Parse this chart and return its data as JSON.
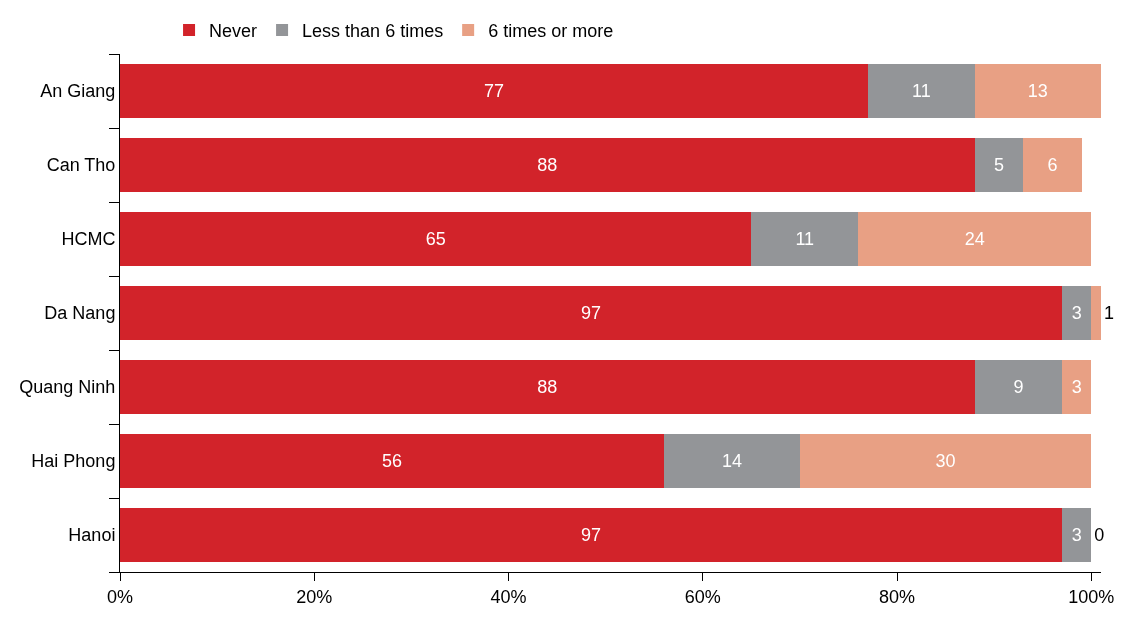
{
  "chart_data": {
    "type": "bar",
    "orientation": "horizontal",
    "stacked": true,
    "categories": [
      "An Giang",
      "Can Tho",
      "HCMC",
      "Da Nang",
      "Quang Ninh",
      "Hai Phong",
      "Hanoi"
    ],
    "series": [
      {
        "name": "Never",
        "color": "#d2232a",
        "values": [
          77,
          88,
          65,
          97,
          88,
          56,
          97
        ]
      },
      {
        "name": "Less than 6 times",
        "color": "#939598",
        "values": [
          11,
          5,
          11,
          3,
          9,
          14,
          3
        ]
      },
      {
        "name": "6 times or more",
        "color": "#e8a084",
        "values": [
          13,
          6,
          24,
          1,
          3,
          30,
          0
        ]
      }
    ],
    "xlim": [
      0,
      101
    ],
    "xticks": [
      {
        "value": 0,
        "label": "0%"
      },
      {
        "value": 20,
        "label": "20%"
      },
      {
        "value": 40,
        "label": "40%"
      },
      {
        "value": 60,
        "label": "60%"
      },
      {
        "value": 80,
        "label": "80%"
      },
      {
        "value": 100,
        "label": "100%"
      }
    ],
    "data_labels": true,
    "legend": "top left"
  }
}
